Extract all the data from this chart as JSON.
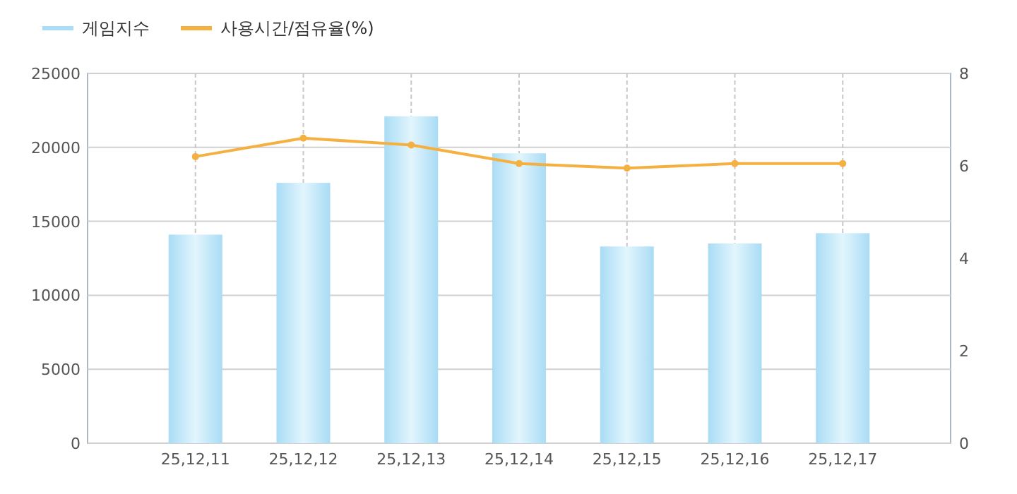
{
  "chart_data": {
    "type": "bar",
    "categories": [
      "25,12,11",
      "25,12,12",
      "25,12,13",
      "25,12,14",
      "25,12,15",
      "25,12,16",
      "25,12,17"
    ],
    "series": [
      {
        "name": "게임지수",
        "color": "#a9dcf5",
        "values": [
          14100,
          17600,
          22100,
          19600,
          13300,
          13500,
          14200
        ]
      },
      {
        "name": "사용시간/점유율(%)",
        "type": "line",
        "axis": "y2",
        "color": "#f5b042",
        "values": [
          6.2,
          6.6,
          6.45,
          6.05,
          5.95,
          6.05,
          6.05
        ]
      }
    ],
    "ylim": [
      0,
      25000
    ],
    "yticks": [
      0,
      5000,
      10000,
      15000,
      20000,
      25000
    ],
    "y2lim": [
      0,
      8
    ],
    "y2ticks": [
      0,
      2,
      4,
      6,
      8
    ],
    "grid": true,
    "legend": "top left",
    "marker": "circle"
  }
}
